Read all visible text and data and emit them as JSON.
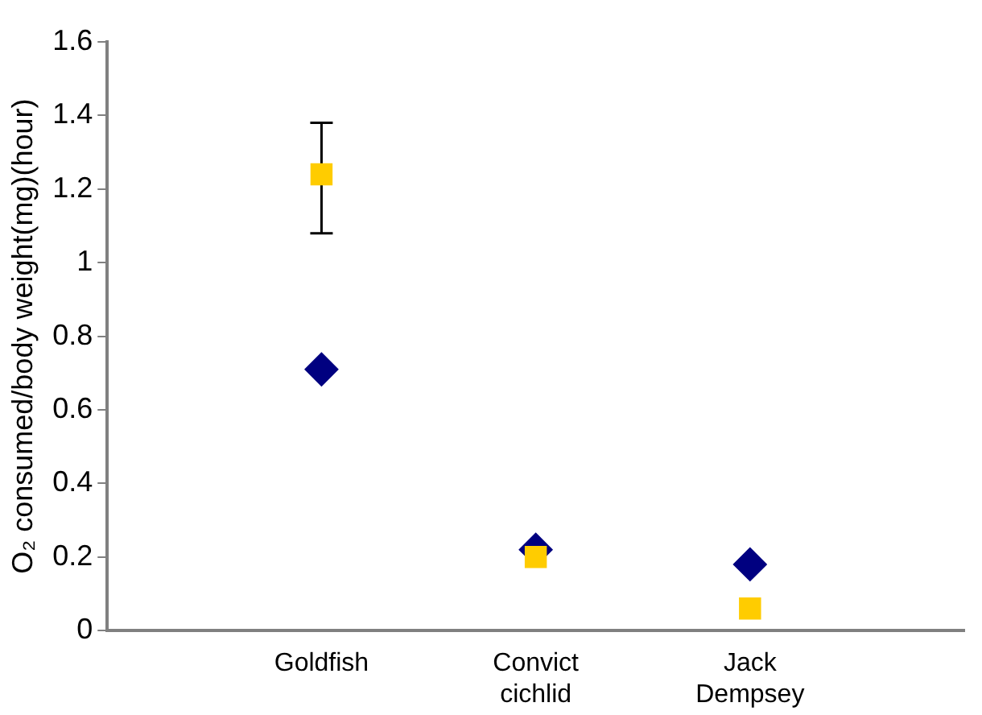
{
  "chart_data": {
    "type": "scatter",
    "ylabel": "O₂ consumed/body weight(mg)(hour)",
    "categories": [
      "Goldfish",
      "Convict cichlid",
      "Jack Dempsey"
    ],
    "ylim": [
      0,
      1.6
    ],
    "yticks": [
      0,
      0.2,
      0.4,
      0.6,
      0.8,
      1,
      1.2,
      1.4,
      1.6
    ],
    "grid": false,
    "legend": false,
    "series": [
      {
        "color": "#000080",
        "marker": "diamond",
        "values": [
          0.71,
          0.22,
          0.18
        ]
      },
      {
        "color": "#ffcc00",
        "marker": "square",
        "values": [
          1.24,
          0.2,
          0.06
        ],
        "errors": [
          [
            1.08,
            1.38
          ],
          null,
          null
        ]
      }
    ]
  }
}
